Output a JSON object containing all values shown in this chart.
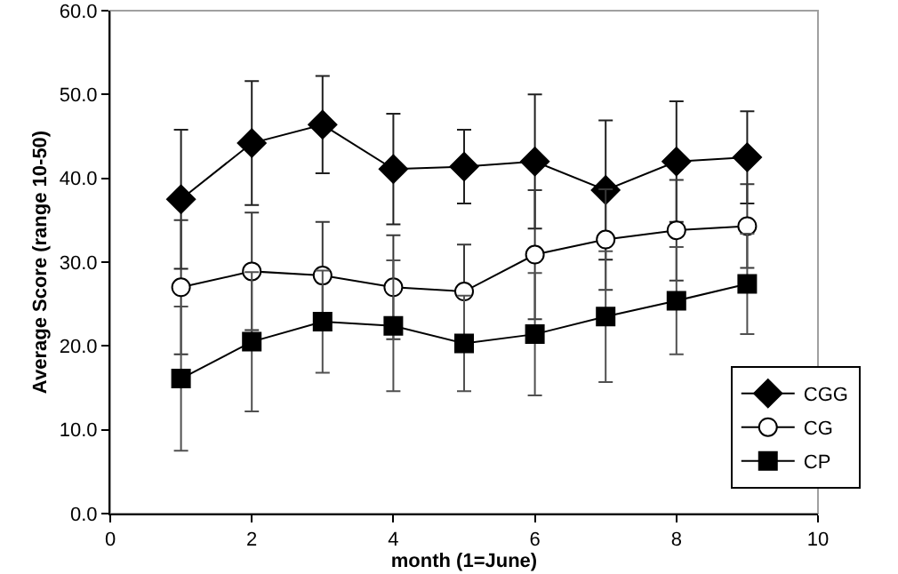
{
  "chart_data": {
    "type": "line",
    "xlabel": "month (1=June)",
    "ylabel": "Average Score (range 10-50)",
    "x": [
      1,
      2,
      3,
      4,
      5,
      6,
      7,
      8,
      9
    ],
    "series": [
      {
        "name": "CGG",
        "color": "#000000",
        "marker": "diamond",
        "values": [
          37.5,
          44.2,
          46.4,
          41.1,
          41.4,
          42.0,
          38.6,
          42.0,
          42.5
        ],
        "errors": [
          8.3,
          7.4,
          5.8,
          6.6,
          4.4,
          8.0,
          8.3,
          7.2,
          5.5
        ]
      },
      {
        "name": "CG",
        "color": "#000000",
        "marker": "circle",
        "values": [
          27.0,
          28.9,
          28.4,
          27.0,
          26.5,
          30.9,
          32.7,
          33.8,
          34.3
        ],
        "errors": [
          8.0,
          7.0,
          6.4,
          6.2,
          5.6,
          7.7,
          6.0,
          6.0,
          5.0
        ]
      },
      {
        "name": "CP",
        "color": "#000000",
        "marker": "square",
        "values": [
          16.1,
          20.5,
          22.9,
          22.4,
          20.3,
          21.4,
          23.5,
          25.4,
          27.4
        ],
        "errors": [
          8.6,
          8.3,
          6.1,
          7.8,
          5.7,
          7.3,
          7.8,
          6.4,
          6.0
        ]
      }
    ],
    "xlim": [
      0,
      10
    ],
    "xticks": [
      0,
      2,
      4,
      6,
      8,
      10
    ],
    "ylim": [
      0,
      60
    ],
    "yticks": [
      {
        "value": 0,
        "label": "0.0"
      },
      {
        "value": 10,
        "label": "10.0"
      },
      {
        "value": 20,
        "label": "20.0"
      },
      {
        "value": 30,
        "label": "30.0"
      },
      {
        "value": 40,
        "label": "40.0"
      },
      {
        "value": 50,
        "label": "50.0"
      },
      {
        "value": 60,
        "label": "60.0"
      }
    ],
    "grid": false,
    "legend": "bottom right",
    "line_style": "solid"
  }
}
